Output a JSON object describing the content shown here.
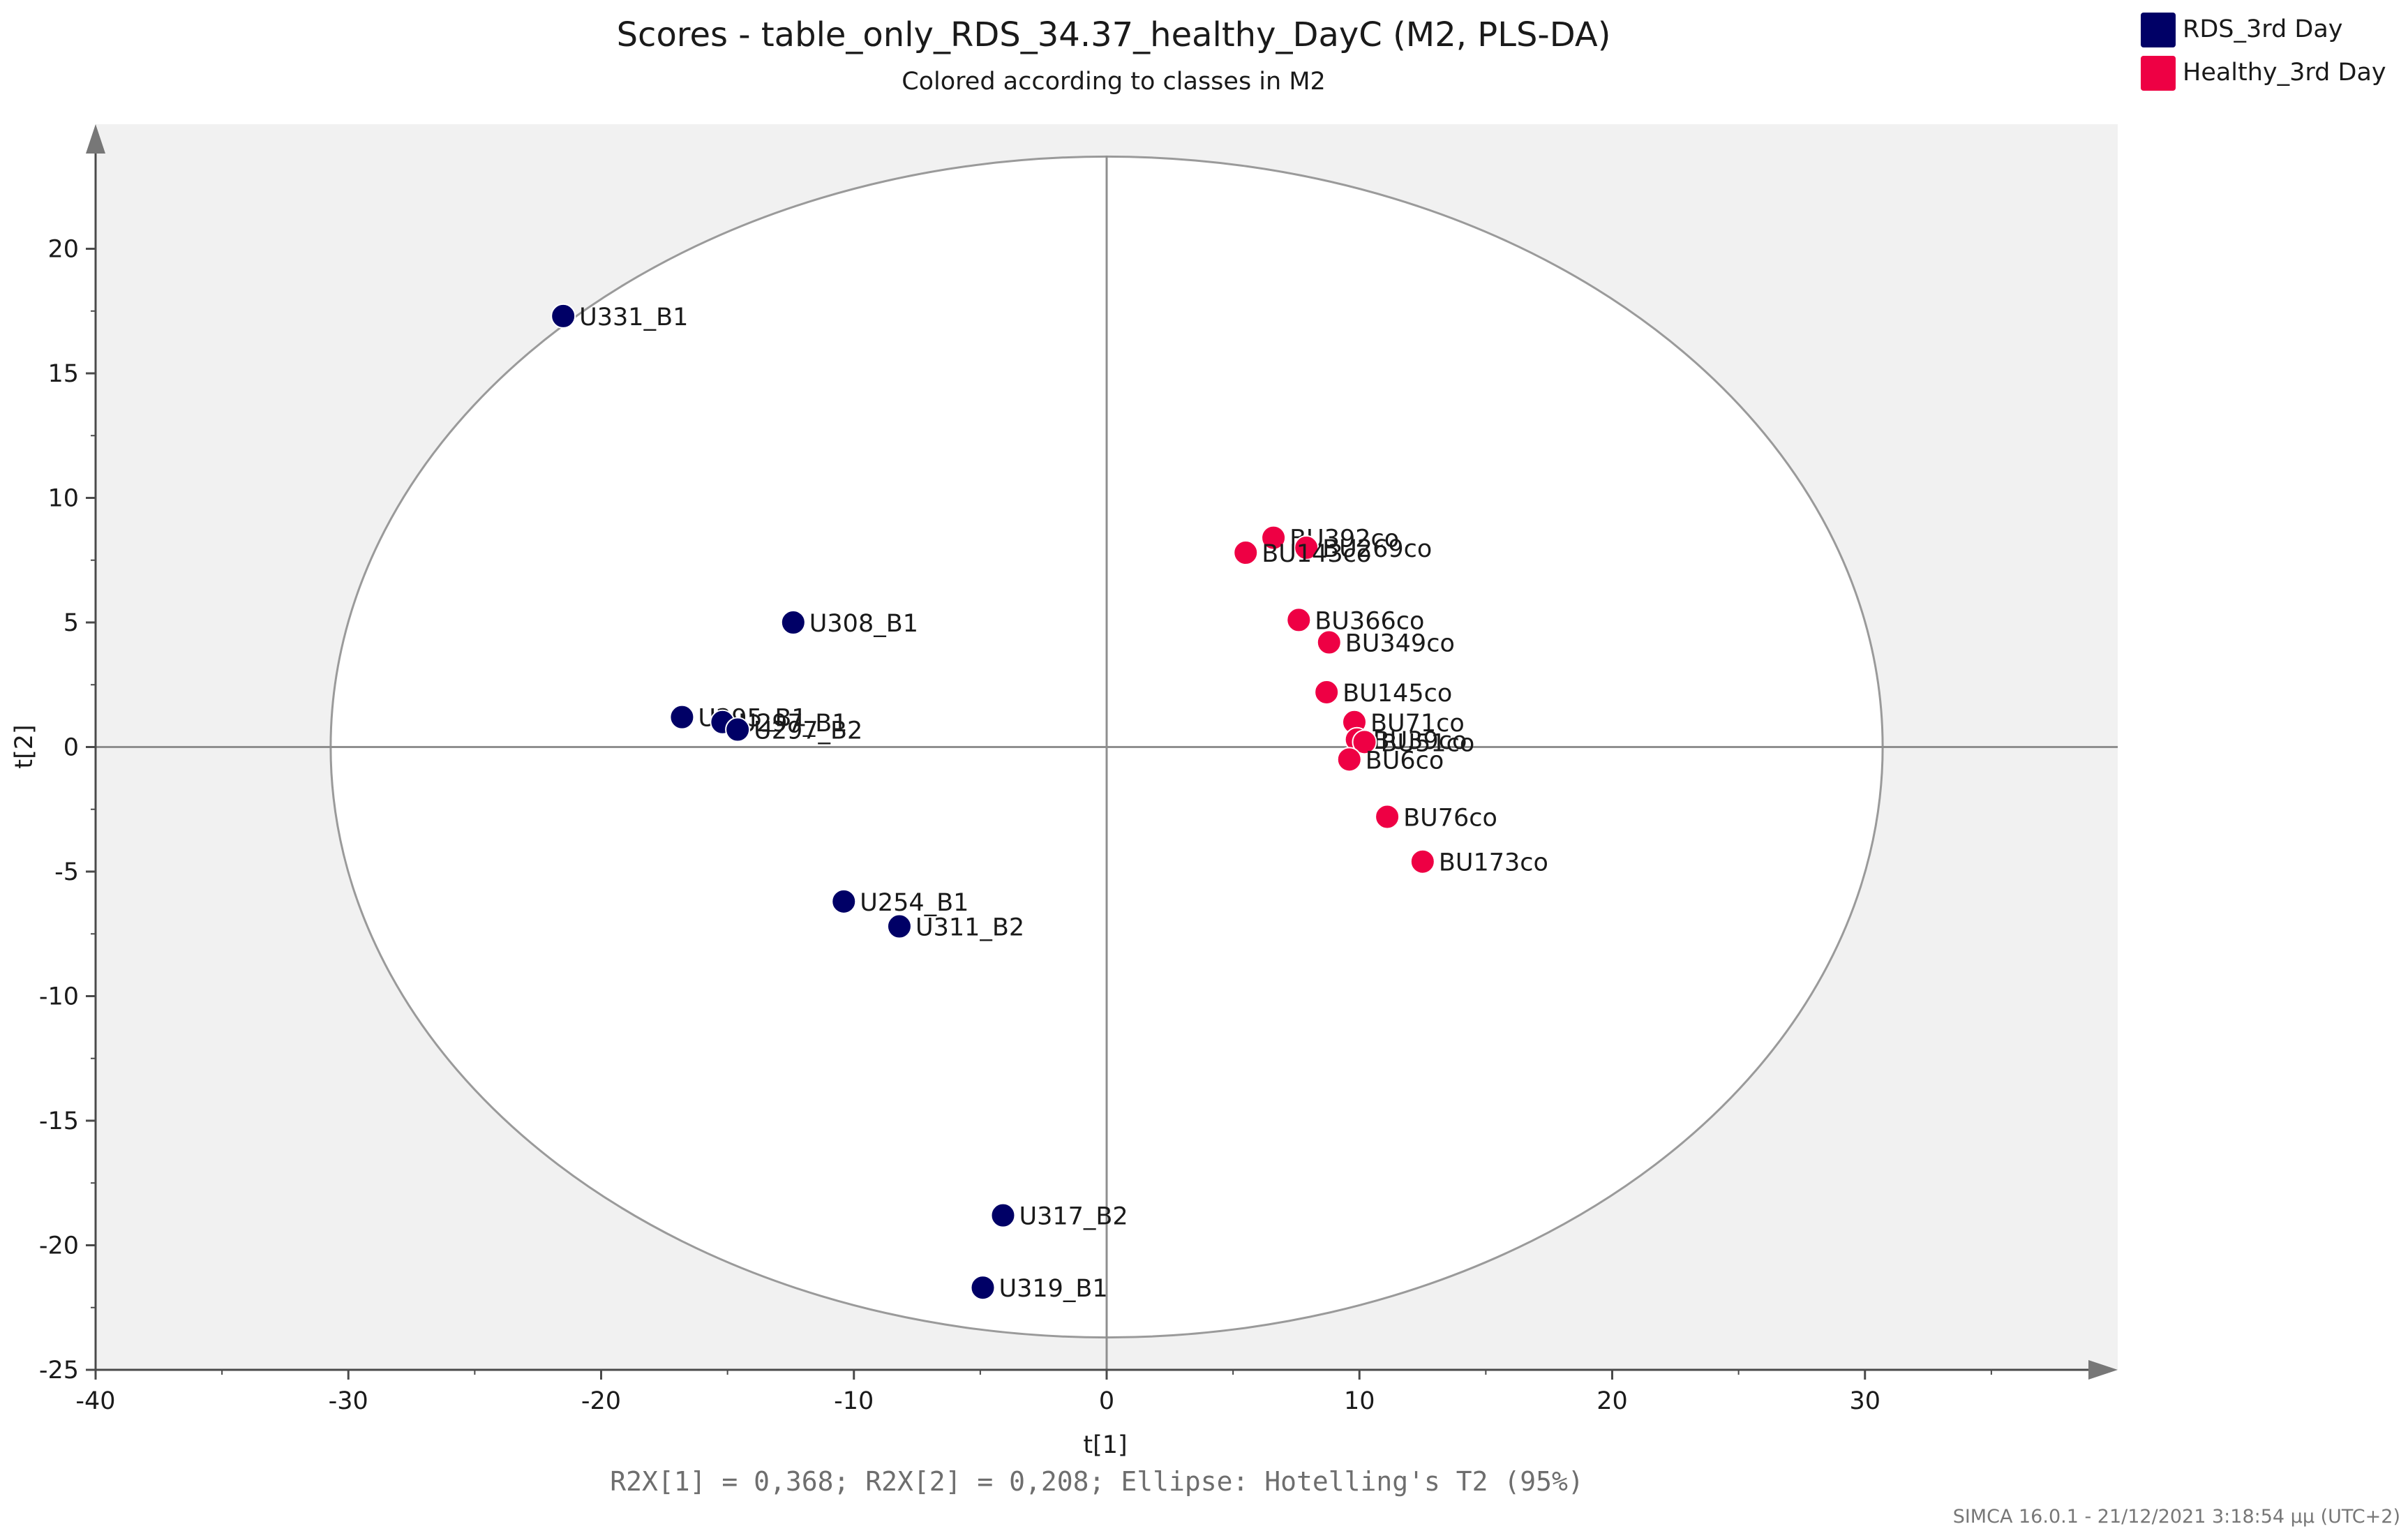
{
  "chart_data": {
    "type": "scatter",
    "title": "Scores - table_only_RDS_34.37_healthy_DayC (M2, PLS-DA)",
    "subtitle": "Colored according to classes in M2",
    "xlabel": "t[1]",
    "ylabel": "t[2]",
    "xlim": [
      -40,
      40
    ],
    "ylim": [
      -25,
      25
    ],
    "xticks": [
      -40,
      -30,
      -20,
      -10,
      0,
      10,
      20,
      30
    ],
    "yticks": [
      -25,
      -20,
      -15,
      -10,
      -5,
      0,
      5,
      10,
      15,
      20
    ],
    "ellipse": {
      "rx": 30.7,
      "ry": 23.7,
      "label": "Hotelling's T2 (95%)"
    },
    "footer": "R2X[1] = 0,368; R2X[2] = 0,208; Ellipse: Hotelling's T2 (95%)",
    "credit": "SIMCA 16.0.1 - 21/12/2021 3:18:54 μμ (UTC+2)",
    "legend": [
      {
        "name": "RDS_3rd Day",
        "color": "#000066"
      },
      {
        "name": "Healthy_3rd Day",
        "color": "#ee0044"
      }
    ],
    "series": [
      {
        "name": "RDS_3rd Day",
        "color": "#000066",
        "points": [
          {
            "label": "U331_B1",
            "x": -21.5,
            "y": 17.3
          },
          {
            "label": "U308_B1",
            "x": -12.4,
            "y": 5.0
          },
          {
            "label": "U295_B1",
            "x": -16.8,
            "y": 1.2
          },
          {
            "label": "U297_B1",
            "x": -15.2,
            "y": 1.0
          },
          {
            "label": "U297_B2",
            "x": -14.6,
            "y": 0.7
          },
          {
            "label": "U254_B1",
            "x": -10.4,
            "y": -6.2
          },
          {
            "label": "U311_B2",
            "x": -8.2,
            "y": -7.2
          },
          {
            "label": "U317_B2",
            "x": -4.1,
            "y": -18.8
          },
          {
            "label": "U319_B1",
            "x": -4.9,
            "y": -21.7
          }
        ]
      },
      {
        "name": "Healthy_3rd Day",
        "color": "#ee0044",
        "points": [
          {
            "label": "BU392co",
            "x": 6.6,
            "y": 8.4
          },
          {
            "label": "BU269co",
            "x": 7.9,
            "y": 8.0
          },
          {
            "label": "BU143co",
            "x": 5.5,
            "y": 7.8
          },
          {
            "label": "BU366co",
            "x": 7.6,
            "y": 5.1
          },
          {
            "label": "BU349co",
            "x": 8.8,
            "y": 4.2
          },
          {
            "label": "BU145co",
            "x": 8.7,
            "y": 2.2
          },
          {
            "label": "BU71co",
            "x": 9.8,
            "y": 1.0
          },
          {
            "label": "BU39co",
            "x": 9.9,
            "y": 0.3
          },
          {
            "label": "BU51co",
            "x": 10.2,
            "y": 0.2
          },
          {
            "label": "BU6co",
            "x": 9.6,
            "y": -0.5
          },
          {
            "label": "BU76co",
            "x": 11.1,
            "y": -2.8
          },
          {
            "label": "BU173co",
            "x": 12.5,
            "y": -4.6
          }
        ]
      }
    ]
  }
}
